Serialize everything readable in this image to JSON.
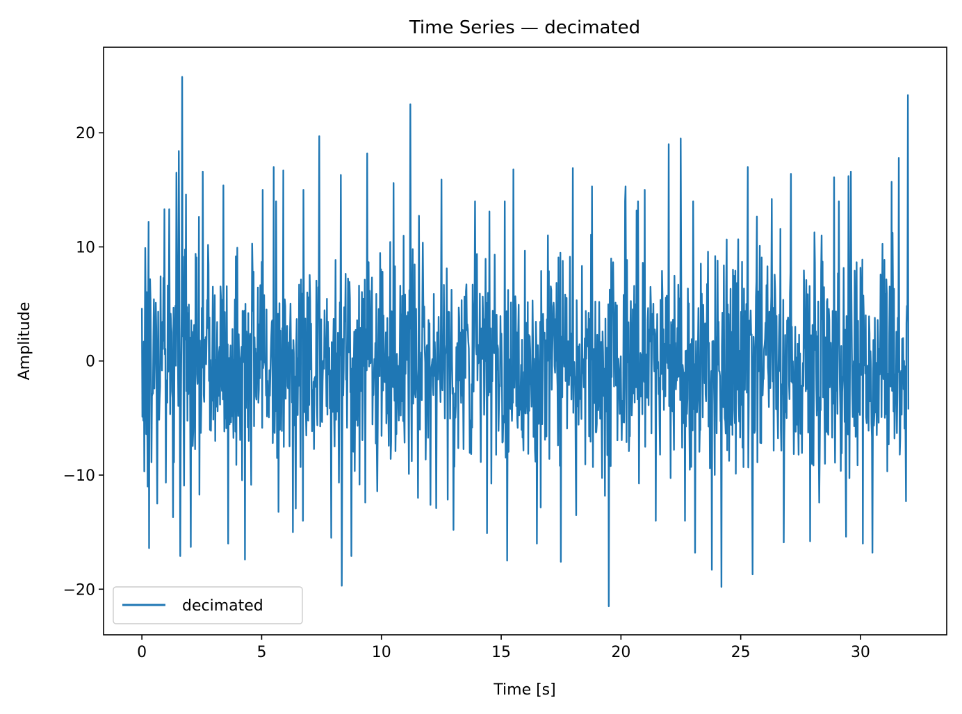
{
  "chart_data": {
    "type": "line",
    "title": "Time Series — decimated",
    "xlabel": "Time [s]",
    "ylabel": "Amplitude",
    "xlim": [
      -1.6,
      33.6
    ],
    "ylim": [
      -24,
      27.5
    ],
    "xticks": [
      0,
      5,
      10,
      15,
      20,
      25,
      30
    ],
    "xtick_labels": [
      "0",
      "5",
      "10",
      "15",
      "20",
      "25",
      "30"
    ],
    "yticks": [
      -20,
      -10,
      0,
      10,
      20
    ],
    "ytick_labels": [
      "−20",
      "−10",
      "0",
      "10",
      "20"
    ],
    "grid": false,
    "legend_position": "lower-left",
    "series": [
      {
        "name": "decimated",
        "color": "#1f77b4",
        "x_range": [
          0,
          32
        ],
        "sample_count": 1600,
        "noise_sd_estimate": 5,
        "peaks": [
          {
            "x": 0.15,
            "y": 9.9
          },
          {
            "x": 0.25,
            "y": -11.0
          },
          {
            "x": 0.28,
            "y": 12.2
          },
          {
            "x": 0.3,
            "y": -16.4
          },
          {
            "x": 0.65,
            "y": -12.5
          },
          {
            "x": 0.95,
            "y": 13.3
          },
          {
            "x": 1.15,
            "y": 13.3
          },
          {
            "x": 1.3,
            "y": -13.7
          },
          {
            "x": 1.45,
            "y": 16.5
          },
          {
            "x": 1.55,
            "y": 18.4
          },
          {
            "x": 1.6,
            "y": -17.1
          },
          {
            "x": 1.68,
            "y": 24.9
          },
          {
            "x": 1.85,
            "y": 14.6
          },
          {
            "x": 2.05,
            "y": -16.3
          },
          {
            "x": 2.55,
            "y": 16.6
          },
          {
            "x": 3.4,
            "y": 15.4
          },
          {
            "x": 3.6,
            "y": -16.0
          },
          {
            "x": 4.3,
            "y": -17.4
          },
          {
            "x": 5.05,
            "y": 15.0
          },
          {
            "x": 5.5,
            "y": 17.0
          },
          {
            "x": 5.9,
            "y": 16.7
          },
          {
            "x": 6.3,
            "y": -15.0
          },
          {
            "x": 6.75,
            "y": 15.0
          },
          {
            "x": 7.4,
            "y": 19.7
          },
          {
            "x": 7.9,
            "y": -15.5
          },
          {
            "x": 8.3,
            "y": 16.3
          },
          {
            "x": 8.35,
            "y": -19.7
          },
          {
            "x": 8.75,
            "y": -17.1
          },
          {
            "x": 9.4,
            "y": 18.2
          },
          {
            "x": 10.5,
            "y": 15.6
          },
          {
            "x": 11.2,
            "y": 22.5
          },
          {
            "x": 12.5,
            "y": 15.9
          },
          {
            "x": 13.0,
            "y": -14.8
          },
          {
            "x": 13.9,
            "y": 14.0
          },
          {
            "x": 14.4,
            "y": -15.1
          },
          {
            "x": 15.25,
            "y": -17.5
          },
          {
            "x": 15.5,
            "y": 16.8
          },
          {
            "x": 16.5,
            "y": -16.0
          },
          {
            "x": 17.5,
            "y": -17.6
          },
          {
            "x": 18.0,
            "y": 16.9
          },
          {
            "x": 18.8,
            "y": 15.3
          },
          {
            "x": 19.5,
            "y": -21.5
          },
          {
            "x": 20.2,
            "y": 15.3
          },
          {
            "x": 21.0,
            "y": 15.0
          },
          {
            "x": 22.0,
            "y": 19.0
          },
          {
            "x": 22.5,
            "y": 19.5
          },
          {
            "x": 23.1,
            "y": -16.8
          },
          {
            "x": 23.8,
            "y": -18.3
          },
          {
            "x": 24.2,
            "y": -19.8
          },
          {
            "x": 25.3,
            "y": 17.0
          },
          {
            "x": 25.5,
            "y": -18.7
          },
          {
            "x": 26.3,
            "y": 14.2
          },
          {
            "x": 26.8,
            "y": -15.9
          },
          {
            "x": 27.1,
            "y": 16.4
          },
          {
            "x": 27.9,
            "y": -15.8
          },
          {
            "x": 28.9,
            "y": 16.1
          },
          {
            "x": 29.4,
            "y": -15.4
          },
          {
            "x": 29.5,
            "y": 16.2
          },
          {
            "x": 29.6,
            "y": 16.6
          },
          {
            "x": 30.1,
            "y": -16.0
          },
          {
            "x": 30.5,
            "y": -16.8
          },
          {
            "x": 31.3,
            "y": 15.7
          },
          {
            "x": 31.6,
            "y": 17.8
          },
          {
            "x": 31.9,
            "y": -12.3
          },
          {
            "x": 31.98,
            "y": 23.3
          }
        ]
      }
    ]
  }
}
